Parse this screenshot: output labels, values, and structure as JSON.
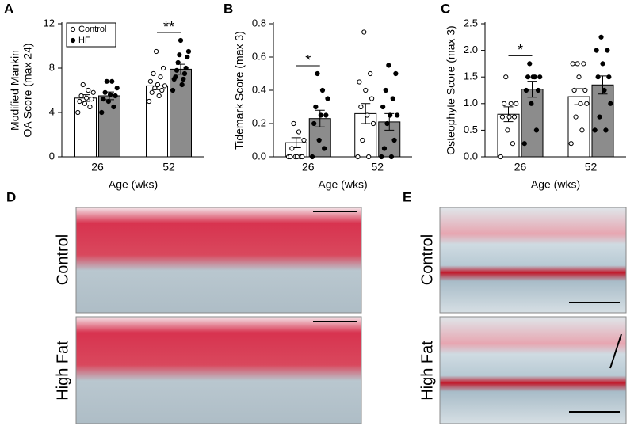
{
  "chart_data": [
    {
      "type": "bar",
      "panel": "A",
      "y_label": [
        "Modified Mankin",
        "OA Score (max 24)"
      ],
      "x_label": "Age (wks)",
      "categories": [
        "26",
        "52"
      ],
      "ylim": [
        0,
        12
      ],
      "yticks": [
        0,
        4,
        8,
        12
      ],
      "legend": "top-left",
      "series": [
        {
          "name": "Control",
          "color": "#ffffff",
          "marker": "#ffffff",
          "values": [
            5.3,
            6.4
          ],
          "errors": [
            0.3,
            0.35
          ],
          "points": [
            [
              4.0,
              4.5,
              4.8,
              5.0,
              5.2,
              5.3,
              5.5,
              5.8,
              6.0,
              6.5
            ],
            [
              5.0,
              5.5,
              5.8,
              6.0,
              6.2,
              6.4,
              6.5,
              6.8,
              7.2,
              7.5,
              8.0,
              9.5
            ]
          ]
        },
        {
          "name": "HF",
          "color": "#8c8c8c",
          "marker": "#000000",
          "values": [
            5.5,
            7.9
          ],
          "errors": [
            0.35,
            0.45
          ],
          "points": [
            [
              4.0,
              4.5,
              5.0,
              5.2,
              5.5,
              5.6,
              5.8,
              6.2,
              6.8,
              6.8
            ],
            [
              6.0,
              6.5,
              7.0,
              7.0,
              7.2,
              7.5,
              7.8,
              8.0,
              8.5,
              9.0,
              9.2,
              9.5,
              10.5
            ]
          ]
        }
      ],
      "annotations": [
        {
          "text": "**",
          "category": "52"
        }
      ]
    },
    {
      "type": "bar",
      "panel": "B",
      "y_label": [
        "Tidemark Score (max 3)"
      ],
      "x_label": "Age (wks)",
      "categories": [
        "26",
        "52"
      ],
      "ylim": [
        0,
        0.8
      ],
      "yticks": [
        {
          "value": 0,
          "label": "0.0"
        },
        0.2,
        0.4,
        0.6,
        0.8
      ],
      "series": [
        {
          "name": "Control",
          "color": "#ffffff",
          "marker": "#ffffff",
          "values": [
            0.085,
            0.26
          ],
          "errors": [
            0.03,
            0.06
          ],
          "points": [
            [
              0,
              0,
              0,
              0,
              0,
              0,
              0.05,
              0.1,
              0.15,
              0.2
            ],
            [
              0,
              0,
              0.1,
              0.2,
              0.25,
              0.3,
              0.35,
              0.4,
              0.45,
              0.5,
              0.75
            ]
          ]
        },
        {
          "name": "HF",
          "color": "#8c8c8c",
          "marker": "#000000",
          "values": [
            0.23,
            0.21
          ],
          "errors": [
            0.05,
            0.05
          ],
          "points": [
            [
              0,
              0.05,
              0.1,
              0.2,
              0.25,
              0.25,
              0.3,
              0.35,
              0.4,
              0.5
            ],
            [
              0,
              0,
              0.05,
              0.1,
              0.2,
              0.25,
              0.25,
              0.3,
              0.35,
              0.4,
              0.5,
              0.55
            ]
          ]
        }
      ],
      "annotations": [
        {
          "text": "*",
          "category": "26"
        }
      ]
    },
    {
      "type": "bar",
      "panel": "C",
      "y_label": [
        "Osteophyte Score (max 3)"
      ],
      "x_label": "Age (wks)",
      "categories": [
        "26",
        "52"
      ],
      "ylim": [
        0,
        2.5
      ],
      "yticks": [
        {
          "value": 0,
          "label": "0.0"
        },
        0.5,
        {
          "value": 1,
          "label": "1.0"
        },
        1.5,
        {
          "value": 2,
          "label": "2.0"
        },
        2.5
      ],
      "series": [
        {
          "name": "Control",
          "color": "#ffffff",
          "marker": "#ffffff",
          "values": [
            0.8,
            1.13
          ],
          "errors": [
            0.14,
            0.15
          ],
          "points": [
            [
              0,
              0.25,
              0.5,
              0.75,
              0.75,
              0.75,
              1,
              1,
              1,
              1.5
            ],
            [
              0.25,
              0.5,
              0.75,
              1,
              1,
              1.25,
              1.25,
              1.5,
              1.75,
              1.75,
              1.75
            ]
          ]
        },
        {
          "name": "HF",
          "color": "#8c8c8c",
          "marker": "#000000",
          "values": [
            1.27,
            1.35
          ],
          "errors": [
            0.15,
            0.17
          ],
          "points": [
            [
              0.25,
              0.5,
              1,
              1.25,
              1.25,
              1.5,
              1.5,
              1.5,
              1.5,
              1.75
            ],
            [
              0.5,
              0.5,
              0.75,
              1,
              1.25,
              1.5,
              1.5,
              1.75,
              2,
              2,
              2.25
            ]
          ]
        }
      ],
      "annotations": [
        {
          "text": "*",
          "category": "26"
        }
      ]
    }
  ],
  "panels": {
    "D": {
      "label": "D",
      "rows": [
        "Control",
        "High Fat"
      ]
    },
    "E": {
      "label": "E",
      "rows": [
        "Control",
        "High Fat"
      ]
    }
  }
}
